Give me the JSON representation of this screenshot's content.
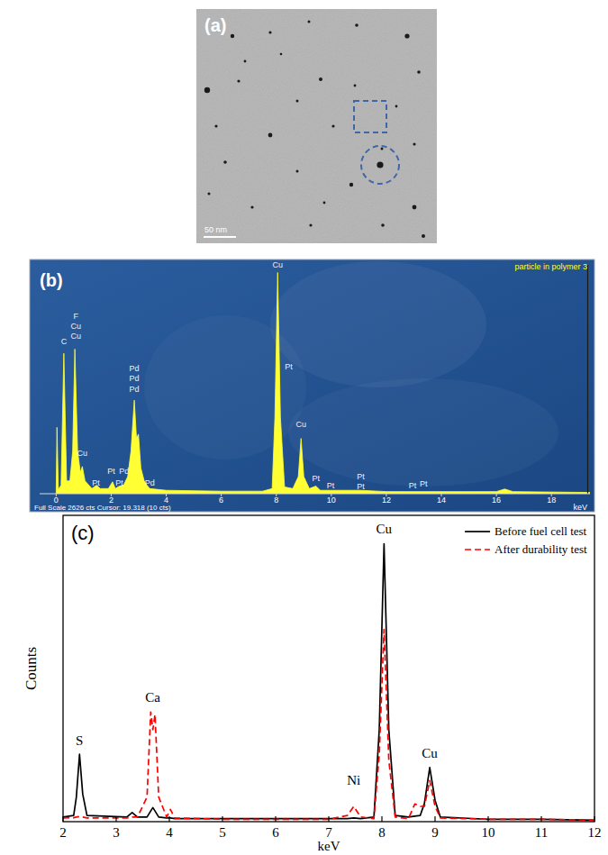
{
  "micrograph": {
    "label": "(a)",
    "scale_bar": "50 nm"
  },
  "chart_data": [
    {
      "panel_label": "(b)",
      "type": "area",
      "title": "particle in polymer 3",
      "x_label": "keV",
      "footer": "Full Scale 2626 cts Cursor: 19.318 (10 cts)",
      "x": [
        0,
        0.03,
        0.08,
        0.18,
        0.28,
        0.38,
        0.5,
        0.6,
        0.68,
        0.78,
        0.88,
        0.95,
        1.05,
        1.3,
        1.47,
        1.6,
        1.9,
        2.05,
        2.15,
        2.3,
        2.45,
        2.6,
        2.72,
        2.84,
        2.92,
        2.99,
        3.08,
        3.2,
        3.3,
        3.4,
        4.0,
        6.0,
        7.5,
        7.85,
        7.95,
        8.05,
        8.15,
        8.3,
        8.6,
        8.8,
        8.9,
        9.0,
        9.2,
        9.44,
        9.6,
        9.97,
        11.07,
        12,
        16.0,
        16.3,
        16.6,
        19.4
      ],
      "values": [
        0,
        780,
        50,
        100,
        1650,
        150,
        150,
        500,
        1700,
        500,
        250,
        320,
        150,
        60,
        100,
        60,
        60,
        140,
        60,
        90,
        100,
        200,
        500,
        1100,
        650,
        700,
        300,
        150,
        100,
        60,
        40,
        30,
        30,
        60,
        900,
        2600,
        900,
        80,
        60,
        200,
        650,
        200,
        60,
        90,
        40,
        40,
        40,
        25,
        25,
        55,
        25,
        15
      ],
      "color": "#ffff33",
      "xlim": [
        -0.6,
        19.4
      ],
      "xticks": [
        0,
        2,
        4,
        6,
        8,
        10,
        12,
        14,
        16,
        18
      ],
      "ylim": [
        0,
        2626
      ],
      "tick_labels": "x",
      "cursor": 19.318,
      "annotations": [
        {
          "text": "C",
          "x": 0.28,
          "y": 1760
        },
        {
          "text": "F",
          "x": 0.72,
          "y": 2050
        },
        {
          "text": "Cu",
          "x": 0.72,
          "y": 1935
        },
        {
          "text": "Cu",
          "x": 0.72,
          "y": 1820
        },
        {
          "text": "Cu",
          "x": 0.95,
          "y": 450
        },
        {
          "text": "Pt",
          "x": 1.45,
          "y": 100
        },
        {
          "text": "Pt",
          "x": 2.0,
          "y": 230
        },
        {
          "text": "Pt",
          "x": 2.3,
          "y": 100
        },
        {
          "text": "Pd",
          "x": 2.47,
          "y": 230
        },
        {
          "text": "Pd",
          "x": 2.84,
          "y": 1440
        },
        {
          "text": "Pd",
          "x": 2.84,
          "y": 1320
        },
        {
          "text": "Pd",
          "x": 2.84,
          "y": 1200
        },
        {
          "text": "Pd",
          "x": 3.4,
          "y": 100
        },
        {
          "text": "Cu",
          "x": 8.05,
          "y": 2660
        },
        {
          "text": "Pt",
          "x": 8.45,
          "y": 1460
        },
        {
          "text": "Cu",
          "x": 8.9,
          "y": 780
        },
        {
          "text": "Pt",
          "x": 9.44,
          "y": 150
        },
        {
          "text": "Pt",
          "x": 9.97,
          "y": 60
        },
        {
          "text": "Pt",
          "x": 11.07,
          "y": 170
        },
        {
          "text": "Pt",
          "x": 11.07,
          "y": 50
        },
        {
          "text": "Pt",
          "x": 12.95,
          "y": 60
        },
        {
          "text": "Pt",
          "x": 13.35,
          "y": 90
        }
      ]
    },
    {
      "panel_label": "(c)",
      "type": "line",
      "x_label": "keV",
      "y_label": "Counts",
      "x": [
        2.0,
        2.2,
        2.25,
        2.31,
        2.37,
        2.45,
        3.2,
        3.3,
        3.4,
        3.58,
        3.65,
        3.69,
        3.73,
        3.8,
        3.95,
        4.02,
        4.1,
        5.0,
        6.0,
        7.0,
        7.35,
        7.47,
        7.6,
        7.85,
        7.95,
        8.04,
        8.13,
        8.25,
        8.5,
        8.62,
        8.72,
        8.8,
        8.9,
        9.0,
        9.1,
        10,
        11,
        12
      ],
      "series": [
        {
          "name": "Before fuel cell test",
          "color": "#000000",
          "line_style": "solid",
          "values": [
            1.5,
            2,
            8,
            22,
            9,
            2,
            1.5,
            3,
            1.5,
            1.5,
            3.5,
            4.6,
            3.5,
            1.5,
            1.2,
            1.2,
            1,
            1,
            1,
            1,
            1,
            1.2,
            1,
            1.5,
            30,
            90.7,
            30,
            2,
            1.5,
            1.8,
            2,
            6,
            17.7,
            7,
            1.5,
            0.8,
            0.8,
            0.5
          ]
        },
        {
          "name": "After durability test",
          "color": "#ff0000",
          "line_style": "dashed",
          "values": [
            1.2,
            1.3,
            1.5,
            1.7,
            1.5,
            1.2,
            1.2,
            1.5,
            1.5,
            8,
            35.8,
            30,
            35,
            8,
            1.5,
            4,
            1.2,
            0.8,
            0.8,
            0.8,
            2,
            5,
            1.5,
            1,
            22,
            62.8,
            20,
            1.5,
            1,
            5.8,
            5,
            5,
            13.4,
            5,
            1.2,
            0.8,
            0.8,
            0.5
          ]
        }
      ],
      "xlim": [
        2,
        12
      ],
      "xticks": [
        2,
        3,
        4,
        5,
        6,
        7,
        8,
        9,
        10,
        11,
        12
      ],
      "ylim": [
        0,
        100
      ],
      "tick_labels": "x",
      "legend": "upper right",
      "annotations": [
        {
          "text": "S",
          "x": 2.31,
          "y": 25
        },
        {
          "text": "Ca",
          "x": 3.69,
          "y": 39
        },
        {
          "text": "Ni",
          "x": 7.47,
          "y": 12
        },
        {
          "text": "Cu",
          "x": 8.04,
          "y": 94
        },
        {
          "text": "Cu",
          "x": 8.9,
          "y": 21
        }
      ]
    }
  ]
}
